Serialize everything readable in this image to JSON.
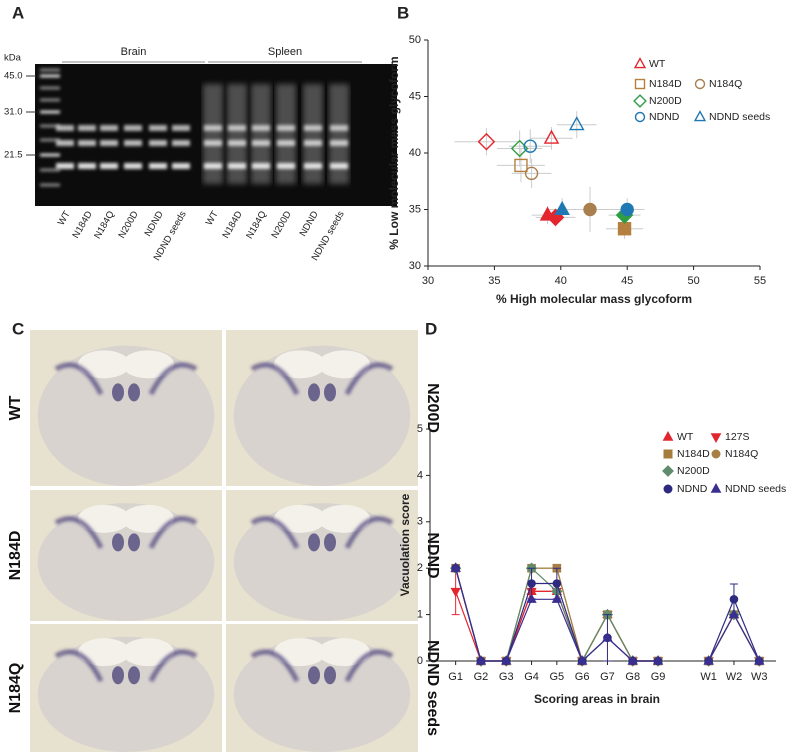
{
  "panels": {
    "A": {
      "label": "A",
      "unit": "kDa",
      "markers": [
        "45.0",
        "31.0",
        "21.5"
      ],
      "groups": [
        "Brain",
        "Spleen"
      ],
      "lanes": [
        "WT",
        "N184D",
        "N184Q",
        "N200D",
        "NDND",
        "NDND seeds",
        "WT",
        "N184D",
        "N184Q",
        "N200D",
        "NDND",
        "NDND seeds"
      ]
    },
    "C": {
      "label": "C",
      "sections": [
        "WT",
        "N184D",
        "N184Q",
        "N200D",
        "NDND",
        "NDND seeds"
      ]
    }
  },
  "chart_data": [
    {
      "type": "scatter",
      "panel_label": "B",
      "x_label": "% High molecular mass glycoform",
      "y_label": "% Low molecular mass glycoform",
      "xlim": [
        30,
        55
      ],
      "ylim": [
        30,
        50
      ],
      "xticks": [
        30,
        35,
        40,
        45,
        50,
        55
      ],
      "yticks": [
        30,
        35,
        40,
        45,
        50
      ],
      "series": [
        {
          "name": "WT",
          "color": "#e3262e",
          "marker": "triangle",
          "filled": [
            false,
            true
          ],
          "x": [
            39.3,
            39.0
          ],
          "y": [
            41.3,
            34.5
          ],
          "xerr": [
            1.6,
            1.2
          ],
          "yerr": [
            1.0,
            0.8
          ]
        },
        {
          "color": "#e3262e",
          "marker": "diamond",
          "filled": [
            false,
            true
          ],
          "x": [
            34.4,
            39.6
          ],
          "y": [
            41.0,
            34.3
          ],
          "xerr": [
            2.4,
            1.5
          ],
          "yerr": [
            1.2,
            0.8
          ]
        },
        {
          "name": "N184D",
          "color": "#b5803f",
          "marker": "square",
          "filled": [
            false,
            true
          ],
          "x": [
            37.0,
            44.8
          ],
          "y": [
            38.9,
            33.3
          ],
          "xerr": [
            1.8,
            1.4
          ],
          "yerr": [
            1.5,
            0.9
          ]
        },
        {
          "name": "N184Q",
          "color": "#a97f4e",
          "marker": "circle",
          "filled": [
            false,
            true
          ],
          "x": [
            37.8,
            42.2
          ],
          "y": [
            38.2,
            35.0
          ],
          "xerr": [
            1.5,
            1.5
          ],
          "yerr": [
            1.3,
            2.0
          ]
        },
        {
          "name": "N200D",
          "color": "#2e9e44",
          "marker": "diamond",
          "filled": [
            false,
            true
          ],
          "x": [
            36.9,
            44.8
          ],
          "y": [
            40.4,
            34.5
          ],
          "xerr": [
            1.7,
            1.2
          ],
          "yerr": [
            1.6,
            0.9
          ]
        },
        {
          "name": "NDND",
          "color": "#1f78b4",
          "marker": "circle",
          "filled": [
            false,
            true
          ],
          "x": [
            37.7,
            45.0
          ],
          "y": [
            40.6,
            35.0
          ],
          "xerr": [
            1.6,
            1.3
          ],
          "yerr": [
            1.5,
            1.0
          ]
        },
        {
          "name": "NDND seeds",
          "color": "#1f78b4",
          "marker": "triangle",
          "filled": [
            false,
            true
          ],
          "x": [
            41.2,
            40.1
          ],
          "y": [
            42.5,
            35.0
          ],
          "xerr": [
            1.5,
            1.0
          ],
          "yerr": [
            1.2,
            1.0
          ]
        }
      ]
    },
    {
      "type": "line",
      "panel_label": "D",
      "x_label": "Scoring areas in brain",
      "y_label": "Vacuolation score",
      "categories": [
        "G1",
        "G2",
        "G3",
        "G4",
        "G5",
        "G6",
        "G7",
        "G8",
        "G9",
        null,
        "W1",
        "W2",
        "W3"
      ],
      "ylim": [
        0,
        5
      ],
      "yticks": [
        0,
        1,
        2,
        3,
        4,
        5
      ],
      "series": [
        {
          "name": "WT",
          "color": "#e3262e",
          "marker": "triangle",
          "values": [
            2,
            0,
            0,
            1.5,
            1.5,
            0,
            1,
            0,
            0,
            null,
            0,
            1,
            0
          ]
        },
        {
          "name": "127S",
          "color": "#e3262e",
          "marker": "inverted",
          "values": [
            1.5,
            0,
            0,
            1.5,
            1.5,
            0,
            1,
            0,
            0,
            null,
            0,
            1,
            0
          ],
          "errors": [
            0.5,
            null,
            null,
            null,
            null,
            null,
            null,
            null,
            null,
            null,
            null,
            null,
            null
          ]
        },
        {
          "name": "N184D",
          "color": "#a67c3d",
          "marker": "square",
          "values": [
            2,
            0,
            0,
            2,
            2,
            0,
            1,
            0,
            0,
            null,
            0,
            1,
            0
          ]
        },
        {
          "name": "N184Q",
          "color": "#a88046",
          "marker": "circle",
          "values": [
            2,
            0,
            0,
            2,
            2,
            0,
            1,
            0,
            0,
            null,
            0,
            1,
            0
          ]
        },
        {
          "name": "N200D",
          "color": "#5e8c6c",
          "marker": "diamond",
          "values": [
            2,
            0,
            0,
            2,
            1.5,
            0,
            1,
            0,
            0,
            null,
            0,
            1,
            0
          ]
        },
        {
          "name": "NDND",
          "color": "#2e2a80",
          "marker": "circle",
          "values": [
            2,
            0,
            0,
            1.67,
            1.67,
            0,
            0.5,
            0,
            0,
            null,
            0,
            1.33,
            0
          ],
          "errors": [
            null,
            null,
            null,
            0.33,
            0.33,
            null,
            0.5,
            null,
            null,
            null,
            null,
            0.33,
            null
          ]
        },
        {
          "name": "NDND seeds",
          "color": "#3a2f90",
          "marker": "triangle",
          "values": [
            2,
            0,
            0,
            1.33,
            1.33,
            0,
            0.5,
            0,
            0,
            null,
            0,
            1,
            0
          ]
        }
      ]
    }
  ]
}
